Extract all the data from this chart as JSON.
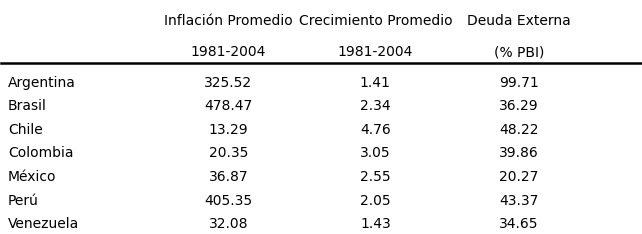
{
  "countries": [
    "Argentina",
    "Brasil",
    "Chile",
    "Colombia",
    "México",
    "Perú",
    "Venezuela"
  ],
  "col_headers": [
    [
      "Inflación Promedio",
      "1981-2004"
    ],
    [
      "Crecimiento Promedio",
      "1981-2004"
    ],
    [
      "Deuda Externa",
      "(% PBI)"
    ]
  ],
  "inflacion": [
    325.52,
    478.47,
    13.29,
    20.35,
    36.87,
    405.35,
    32.08
  ],
  "crecimiento": [
    1.41,
    2.34,
    4.76,
    3.05,
    2.55,
    2.05,
    1.43
  ],
  "deuda": [
    99.71,
    36.29,
    48.22,
    39.86,
    20.27,
    43.37,
    34.65
  ],
  "bg_color": "#ffffff",
  "text_color": "#000000",
  "font_size": 10,
  "header_font_size": 10
}
